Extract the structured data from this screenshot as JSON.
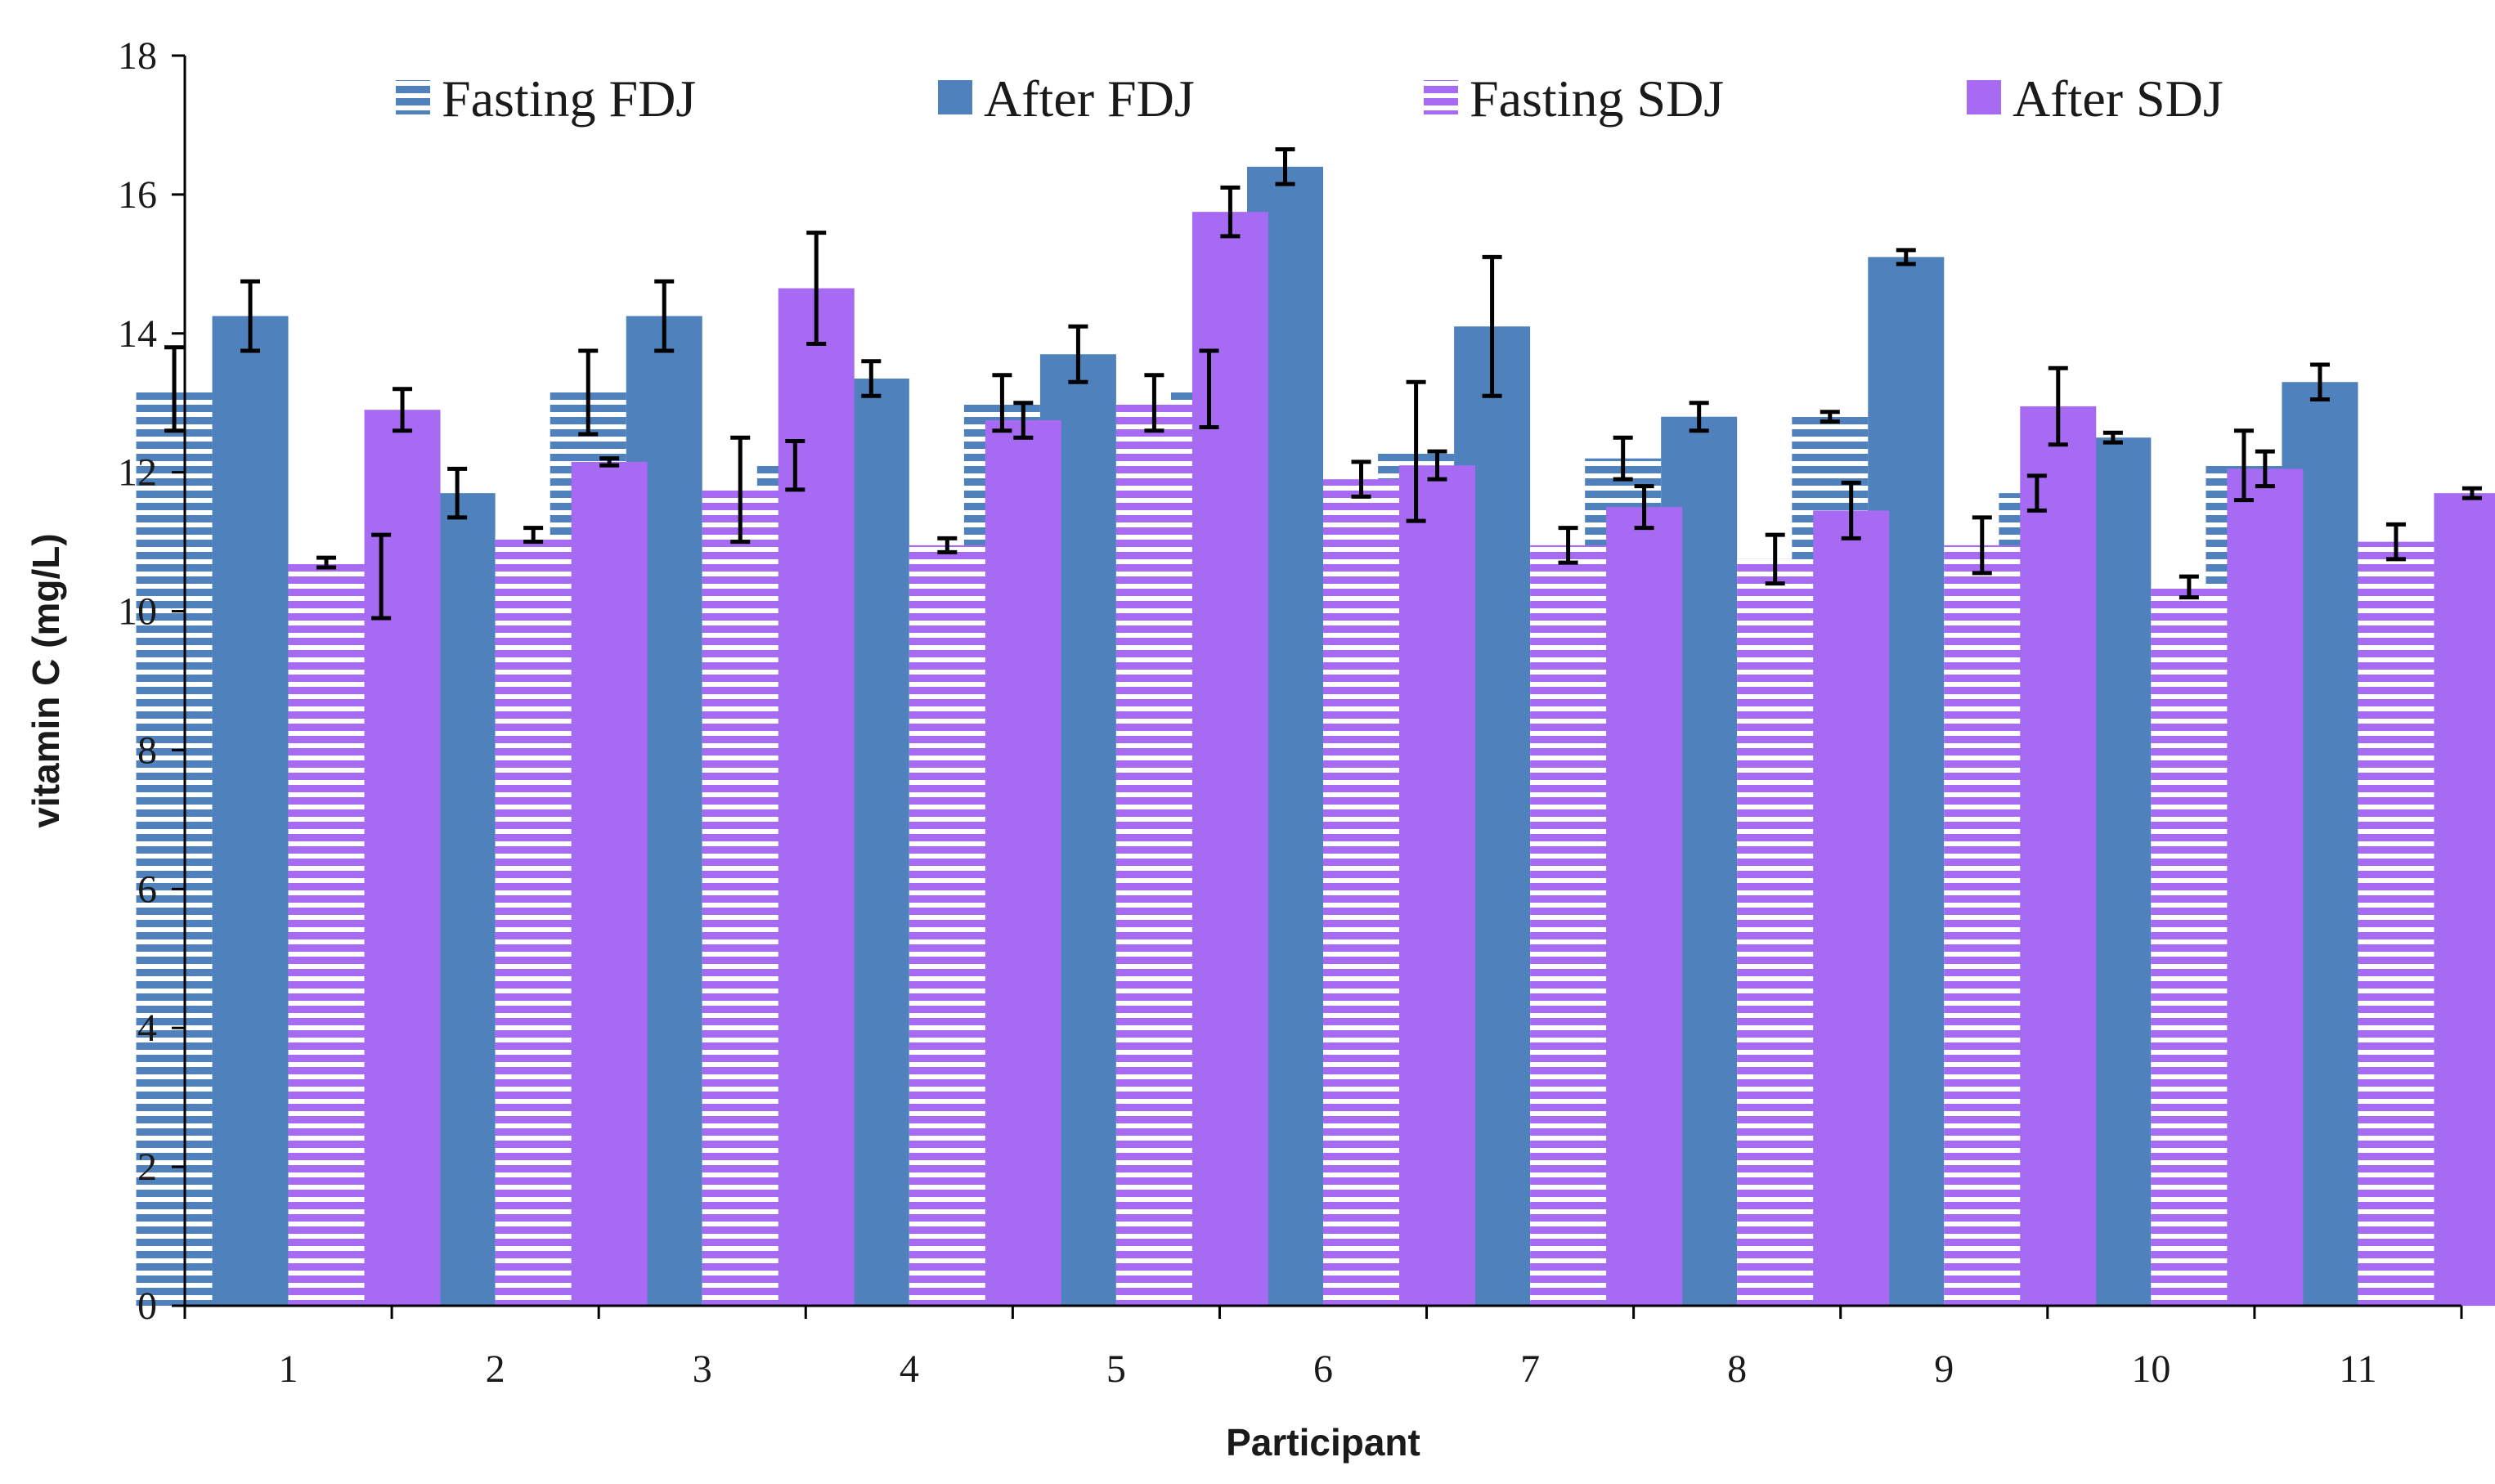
{
  "chart_data": {
    "type": "bar",
    "title": "",
    "xlabel": "Participant",
    "ylabel": "vitamin C (mg/L)",
    "ylim": [
      0,
      18
    ],
    "yticks": [
      0,
      2,
      4,
      6,
      8,
      10,
      12,
      14,
      16,
      18
    ],
    "categories": [
      "1",
      "2",
      "3",
      "4",
      "5",
      "6",
      "7",
      "8",
      "9",
      "10",
      "11"
    ],
    "legend_position": "top",
    "series": [
      {
        "name": "Fasting FDJ",
        "color": "#4F81BD",
        "pattern": "horizontal-stripes",
        "values": [
          13.2,
          10.5,
          13.15,
          12.1,
          13.0,
          13.2,
          12.3,
          12.2,
          12.8,
          11.7,
          12.1
        ],
        "errors": [
          0.6,
          0.6,
          0.6,
          0.35,
          0.4,
          0.55,
          1.0,
          0.3,
          0.07,
          0.25,
          0.5
        ]
      },
      {
        "name": "After FDJ",
        "color": "#4F81BD",
        "pattern": "solid",
        "values": [
          14.25,
          11.7,
          14.25,
          13.35,
          13.7,
          16.4,
          14.1,
          12.8,
          15.1,
          12.5,
          13.3
        ],
        "errors": [
          0.5,
          0.35,
          0.5,
          0.25,
          0.4,
          0.25,
          1.0,
          0.2,
          0.1,
          0.07,
          0.25
        ]
      },
      {
        "name": "Fasting SDJ",
        "color": "#A66BF2",
        "pattern": "horizontal-stripes",
        "values": [
          10.7,
          11.1,
          11.75,
          10.95,
          13.0,
          11.9,
          10.95,
          10.75,
          10.95,
          10.35,
          11.0
        ],
        "errors": [
          0.07,
          0.1,
          0.75,
          0.1,
          0.4,
          0.25,
          0.25,
          0.35,
          0.4,
          0.15,
          0.25
        ]
      },
      {
        "name": "After SDJ",
        "color": "#A66BF2",
        "pattern": "solid",
        "values": [
          12.9,
          12.15,
          14.65,
          12.75,
          15.75,
          12.1,
          11.5,
          11.45,
          12.95,
          12.05,
          11.7
        ],
        "errors": [
          0.3,
          0.05,
          0.8,
          0.25,
          0.35,
          0.2,
          0.3,
          0.4,
          0.55,
          0.25,
          0.07
        ]
      }
    ]
  }
}
